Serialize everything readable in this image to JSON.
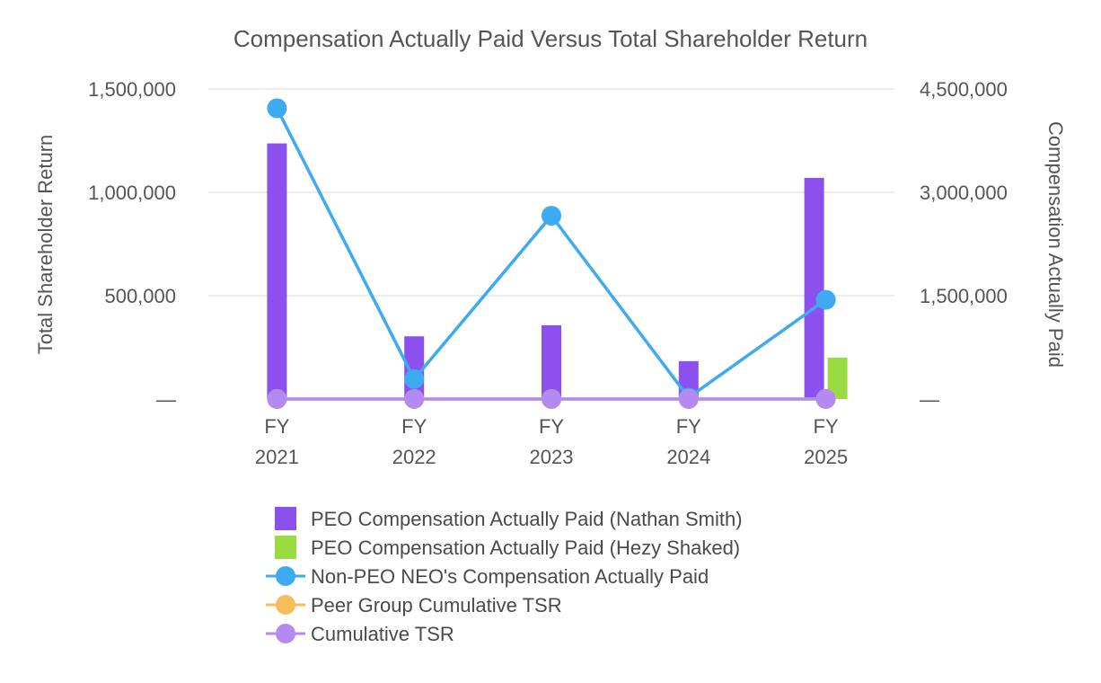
{
  "chart_data": {
    "type": "bar",
    "title": "Compensation Actually Paid Versus Total Shareholder Return",
    "categories": [
      [
        "FY",
        "2021"
      ],
      [
        "FY",
        "2022"
      ],
      [
        "FY",
        "2023"
      ],
      [
        "FY",
        "2024"
      ],
      [
        "FY",
        "2025"
      ]
    ],
    "left_axis": {
      "label": "Total Shareholder Return",
      "range": [
        0,
        1500000
      ],
      "ticks": [
        {
          "value": 0,
          "label": "—"
        },
        {
          "value": 500000,
          "label": "500,000"
        },
        {
          "value": 1000000,
          "label": "1,000,000"
        },
        {
          "value": 1500000,
          "label": "1,500,000"
        }
      ]
    },
    "right_axis": {
      "label": "Compensation Actually Paid",
      "range": [
        0,
        4500000
      ],
      "ticks": [
        {
          "value": 0,
          "label": "—"
        },
        {
          "value": 1500000,
          "label": "1,500,000"
        },
        {
          "value": 3000000,
          "label": "3,000,000"
        },
        {
          "value": 4500000,
          "label": "4,500,000"
        }
      ]
    },
    "grid": true,
    "legend_position": "bottom",
    "series": [
      {
        "name": "PEO Compensation Actually Paid (Nathan Smith)",
        "type": "bar",
        "axis": "right",
        "color": "#8B50EE",
        "values": [
          3710000,
          910000,
          1070000,
          550000,
          3210000
        ]
      },
      {
        "name": "PEO Compensation Actually Paid (Hezy Shaked)",
        "type": "bar",
        "axis": "right",
        "color": "#9ADB42",
        "values": [
          null,
          null,
          null,
          null,
          600000
        ]
      },
      {
        "name": "Non-PEO NEO's Compensation Actually Paid",
        "type": "line",
        "axis": "right",
        "color": "#3EAAF2",
        "values": [
          4220000,
          290000,
          2660000,
          20000,
          1440000
        ]
      },
      {
        "name": "Peer Group Cumulative TSR",
        "type": "line",
        "axis": "left",
        "color": "#F5BE5A",
        "values": [
          110,
          105,
          115,
          120,
          125
        ]
      },
      {
        "name": "Cumulative TSR",
        "type": "line",
        "axis": "left",
        "color": "#B48AF0",
        "values": [
          100,
          40,
          55,
          12,
          20
        ]
      }
    ]
  }
}
